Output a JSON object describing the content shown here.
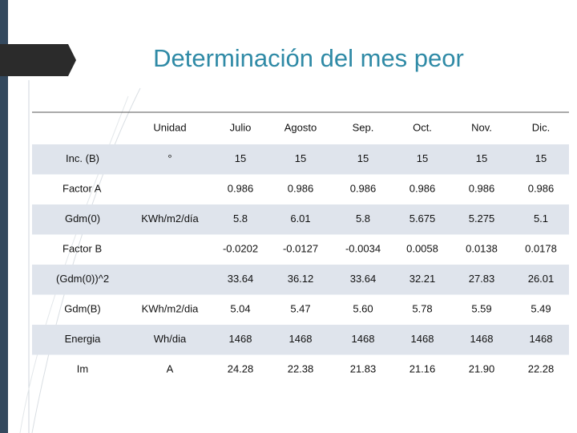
{
  "title": "Determinación del mes peor",
  "table": {
    "header": [
      "Unidad",
      "Julio",
      "Agosto",
      "Sep.",
      "Oct.",
      "Nov.",
      "Dic."
    ],
    "rows": [
      {
        "label": "Inc. (B)",
        "unit": "°",
        "values": [
          "15",
          "15",
          "15",
          "15",
          "15",
          "15"
        ]
      },
      {
        "label": "Factor A",
        "unit": null,
        "values": [
          "0.986",
          "0.986",
          "0.986",
          "0.986",
          "0.986",
          "0.986"
        ]
      },
      {
        "label": "Gdm(0)",
        "unit": "KWh/m2/día",
        "values": [
          "5.8",
          "6.01",
          "5.8",
          "5.675",
          "5.275",
          "5.1"
        ]
      },
      {
        "label": "Factor B",
        "unit": null,
        "values": [
          "-0.0202",
          "-0.0127",
          "-0.0034",
          "0.0058",
          "0.0138",
          "0.0178"
        ]
      },
      {
        "label": "(Gdm(0))^2",
        "unit": null,
        "values": [
          "33.64",
          "36.12",
          "33.64",
          "32.21",
          "27.83",
          "26.01"
        ]
      },
      {
        "label": "Gdm(B)",
        "unit": "KWh/m2/dia",
        "values": [
          "5.04",
          "5.47",
          "5.60",
          "5.78",
          "5.59",
          "5.49"
        ]
      },
      {
        "label": "Energia",
        "unit": "Wh/dia",
        "values": [
          "1468",
          "1468",
          "1468",
          "1468",
          "1468",
          "1468"
        ]
      },
      {
        "label": "Im",
        "unit": "A",
        "values": [
          "24.28",
          "22.38",
          "21.83",
          "21.16",
          "21.90",
          "22.28"
        ]
      }
    ]
  }
}
